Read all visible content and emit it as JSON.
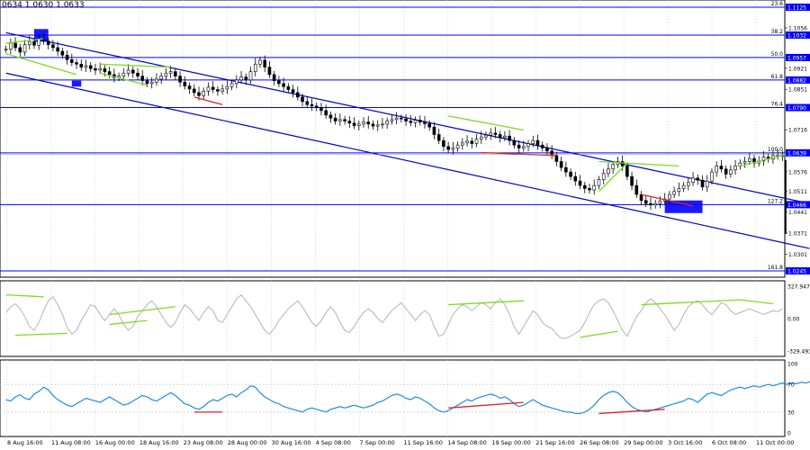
{
  "header": {
    "ohlc": "0634 1.0630 1.0633"
  },
  "colors": {
    "background": "#ffffff",
    "grid": "#c8c8c8",
    "candle": "#000000",
    "fib_line": "#0000ff",
    "channel": "#0000cc",
    "bull_divergence": "#7cdc1e",
    "bear_divergence": "#e02020",
    "osc_line": "#bfbfbf",
    "rsi_line": "#1e8ce6",
    "highlight_box": "#0000ff",
    "price_label_bg": "#0000ff"
  },
  "chart_data": [
    {
      "type": "candlestick",
      "panel": "price",
      "ylim": [
        1.025,
        1.125
      ],
      "axis_ticks": [
        "1.1056",
        "1.0921",
        "1.0851",
        "1.0716",
        "1.0576",
        "1.0511",
        "1.0441",
        "1.0371",
        "1.0301"
      ],
      "price_labels": [
        "1.1125",
        "1.1032",
        "1.0957",
        "1.0882",
        "1.0790",
        "1.0639",
        "1.0466",
        "1.0245"
      ],
      "fib_levels": [
        {
          "label": "23.6",
          "price": 1.1125
        },
        {
          "label": "38.2",
          "price": 1.1032
        },
        {
          "label": "50.0",
          "price": 1.0957
        },
        {
          "label": "61.8",
          "price": 1.0882
        },
        {
          "label": "76.4",
          "price": 1.079
        },
        {
          "label": "100.0",
          "price": 1.0639
        },
        {
          "label": "127.2",
          "price": 1.0466
        },
        {
          "label": "161.8",
          "price": 1.0245
        }
      ],
      "current_price": 1.0633,
      "closes": [
        1.0985,
        1.1005,
        1.099,
        1.0975,
        1.1,
        1.101,
        1.0998,
        1.1018,
        1.1012,
        1.1,
        1.099,
        1.0978,
        1.0965,
        1.095,
        1.094,
        1.0935,
        1.0925,
        1.093,
        1.092,
        1.0915,
        1.092,
        1.091,
        1.09,
        1.089,
        1.0895,
        1.0905,
        1.0915,
        1.0905,
        1.0895,
        1.088,
        1.087,
        1.0875,
        1.0885,
        1.0895,
        1.0905,
        1.091,
        1.0895,
        1.0875,
        1.0862,
        1.0852,
        1.084,
        1.083,
        1.0845,
        1.0858,
        1.085,
        1.0845,
        1.0852,
        1.086,
        1.087,
        1.0882,
        1.0892,
        1.0882,
        1.091,
        1.0935,
        1.0948,
        1.0925,
        1.09,
        1.088,
        1.087,
        1.086,
        1.085,
        1.084,
        1.0825,
        1.081,
        1.08,
        1.0795,
        1.079,
        1.078,
        1.0765,
        1.0755,
        1.0745,
        1.075,
        1.0745,
        1.0738,
        1.073,
        1.0735,
        1.0742,
        1.0735,
        1.0728,
        1.0732,
        1.0735,
        1.0745,
        1.075,
        1.0755,
        1.0752,
        1.0745,
        1.074,
        1.0748,
        1.0742,
        1.0736,
        1.0725,
        1.07,
        1.068,
        1.066,
        1.065,
        1.0655,
        1.0665,
        1.0672,
        1.0678,
        1.067,
        1.0685,
        1.0692,
        1.0698,
        1.0705,
        1.07,
        1.069,
        1.0695,
        1.068,
        1.0665,
        1.0655,
        1.066,
        1.067,
        1.068,
        1.0665,
        1.0655,
        1.0645,
        1.063,
        1.061,
        1.059,
        1.0575,
        1.056,
        1.0545,
        1.053,
        1.052,
        1.0515,
        1.053,
        1.055,
        1.057,
        1.0585,
        1.06,
        1.061,
        1.0595,
        1.056,
        1.053,
        1.05,
        1.048,
        1.047,
        1.0465,
        1.047,
        1.0478,
        1.0485,
        1.05,
        1.051,
        1.052,
        1.053,
        1.054,
        1.0555,
        1.0548,
        1.0525,
        1.0545,
        1.0575,
        1.0595,
        1.0585,
        1.0568,
        1.0582,
        1.0595,
        1.0605,
        1.061,
        1.062,
        1.0605,
        1.0612,
        1.0625,
        1.0618,
        1.063,
        1.0628,
        1.0633
      ],
      "channel": {
        "upper": [
          [
            1.104,
            0
          ],
          [
            1.047,
            165
          ]
        ],
        "lower": [
          [
            1.0905,
            0
          ],
          [
            1.032,
            165
          ]
        ]
      },
      "divergences": [
        {
          "color": "bull",
          "from": [
            0,
            1.1005
          ],
          "to": [
            8,
            1.102
          ]
        },
        {
          "color": "bull",
          "from": [
            0,
            1.097
          ],
          "to": [
            15,
            1.09
          ]
        },
        {
          "color": "bull",
          "from": [
            20,
            1.0935
          ],
          "to": [
            35,
            1.0925
          ]
        },
        {
          "color": "bull",
          "from": [
            20,
            1.0905
          ],
          "to": [
            30,
            1.0865
          ]
        },
        {
          "color": "bear",
          "from": [
            40,
            1.0825
          ],
          "to": [
            46,
            1.08
          ]
        },
        {
          "color": "bull",
          "from": [
            94,
            1.0762
          ],
          "to": [
            110,
            1.0715
          ]
        },
        {
          "color": "bear",
          "from": [
            101,
            1.064
          ],
          "to": [
            117,
            1.063
          ]
        },
        {
          "color": "bull",
          "from": [
            126,
            1.061
          ],
          "to": [
            143,
            1.0595
          ]
        },
        {
          "color": "bull",
          "from": [
            132,
            1.0605
          ],
          "to": [
            126,
            1.051
          ]
        },
        {
          "color": "bear",
          "from": [
            135,
            1.05
          ],
          "to": [
            146,
            1.0462
          ]
        },
        {
          "color": "bull",
          "from": [
            156,
            1.0595
          ],
          "to": [
            166,
            1.0635
          ]
        }
      ],
      "boxes": [
        {
          "from": 6,
          "to": 9,
          "low": 1.101,
          "high": 1.1052
        },
        {
          "from": 14,
          "to": 16,
          "low": 1.086,
          "high": 1.088
        },
        {
          "from": 140,
          "to": 148,
          "low": 1.0438,
          "high": 1.048
        }
      ],
      "x_labels": [
        "8 Aug 16:00",
        "11 Aug 08:00",
        "16 Aug 00:00",
        "18 Aug 16:00",
        "23 Aug 08:00",
        "28 Aug 00:00",
        "30 Aug 16:00",
        "4 Sep 08:00",
        "7 Sep 00:00",
        "11 Sep 16:00",
        "14 Sep 08:00",
        "19 Sep 00:00",
        "21 Sep 16:00",
        "26 Sep 08:00",
        "29 Sep 00:00",
        "3 Oct 16:00",
        "6 Oct 08:00",
        "11 Oct 00:00"
      ]
    },
    {
      "type": "line",
      "panel": "cci",
      "ylim": [
        -329.493,
        327.9475
      ],
      "axis_ticks": [
        "327.9475",
        "0.00",
        "-329.4930"
      ],
      "values": [
        60,
        120,
        150,
        100,
        20,
        -80,
        -120,
        -40,
        80,
        180,
        220,
        140,
        40,
        -90,
        -160,
        -120,
        -20,
        60,
        140,
        120,
        40,
        -20,
        40,
        100,
        40,
        -60,
        -120,
        -80,
        20,
        80,
        140,
        180,
        120,
        40,
        -40,
        -90,
        -40,
        60,
        140,
        100,
        40,
        -20,
        60,
        120,
        80,
        -20,
        -40,
        40,
        120,
        200,
        240,
        180,
        120,
        40,
        -40,
        -120,
        -160,
        -100,
        -20,
        40,
        100,
        140,
        180,
        120,
        40,
        -40,
        -80,
        -20,
        60,
        120,
        60,
        -40,
        -120,
        -140,
        -80,
        0,
        60,
        100,
        60,
        0,
        -40,
        20,
        80,
        120,
        160,
        100,
        40,
        -20,
        40,
        80,
        40,
        -80,
        -180,
        -160,
        -60,
        40,
        100,
        140,
        120,
        80,
        120,
        160,
        140,
        100,
        160,
        200,
        140,
        40,
        -80,
        -160,
        -80,
        0,
        80,
        40,
        -40,
        -80,
        -100,
        -160,
        -200,
        -200,
        -180,
        -150,
        -120,
        -40,
        60,
        140,
        180,
        200,
        160,
        80,
        -20,
        -120,
        -180,
        -80,
        20,
        80,
        160,
        200,
        160,
        100,
        40,
        -40,
        -120,
        -60,
        40,
        120,
        160,
        180,
        140,
        80,
        40,
        100,
        160,
        140,
        80,
        40,
        60,
        80,
        100,
        80,
        60,
        40,
        60,
        80,
        70,
        100
      ],
      "divergences": [
        {
          "color": "bull",
          "from": [
            0,
            240
          ],
          "to": [
            8,
            220
          ]
        },
        {
          "color": "bull",
          "from": [
            2,
            -170
          ],
          "to": [
            13,
            -150
          ]
        },
        {
          "color": "bull",
          "from": [
            22,
            40
          ],
          "to": [
            36,
            120
          ]
        },
        {
          "color": "bull",
          "from": [
            22,
            -60
          ],
          "to": [
            30,
            -20
          ]
        },
        {
          "color": "bull",
          "from": [
            94,
            140
          ],
          "to": [
            110,
            180
          ]
        },
        {
          "color": "bull",
          "from": [
            122,
            -190
          ],
          "to": [
            130,
            -130
          ]
        },
        {
          "color": "bull",
          "from": [
            135,
            140
          ],
          "to": [
            156,
            190
          ]
        },
        {
          "color": "bull",
          "from": [
            156,
            190
          ],
          "to": [
            163,
            150
          ]
        }
      ]
    },
    {
      "type": "line",
      "panel": "rsi",
      "ylim": [
        0,
        100
      ],
      "axis_ticks": [
        "100",
        "70",
        "30",
        "0"
      ],
      "levels": [
        70,
        30
      ],
      "values": [
        48,
        46,
        52,
        55,
        50,
        48,
        56,
        60,
        66,
        62,
        54,
        48,
        44,
        40,
        38,
        42,
        46,
        50,
        48,
        46,
        44,
        48,
        52,
        48,
        44,
        40,
        42,
        46,
        50,
        54,
        52,
        48,
        46,
        50,
        54,
        58,
        54,
        48,
        42,
        40,
        36,
        34,
        38,
        44,
        48,
        46,
        50,
        54,
        56,
        52,
        58,
        62,
        68,
        66,
        58,
        52,
        48,
        44,
        42,
        38,
        36,
        34,
        32,
        30,
        34,
        36,
        34,
        32,
        30,
        34,
        36,
        38,
        36,
        38,
        40,
        38,
        36,
        38,
        40,
        44,
        46,
        50,
        54,
        56,
        54,
        50,
        48,
        52,
        50,
        46,
        42,
        36,
        32,
        30,
        32,
        36,
        40,
        44,
        48,
        46,
        50,
        52,
        54,
        56,
        54,
        50,
        52,
        48,
        42,
        38,
        40,
        44,
        48,
        44,
        40,
        38,
        36,
        34,
        32,
        30,
        30,
        28,
        28,
        30,
        34,
        40,
        48,
        54,
        58,
        60,
        58,
        52,
        44,
        38,
        34,
        32,
        30,
        32,
        34,
        36,
        38,
        40,
        42,
        44,
        46,
        50,
        48,
        44,
        50,
        56,
        58,
        56,
        54,
        58,
        62,
        64,
        66,
        64,
        66,
        68,
        66,
        68,
        70,
        68,
        70,
        72,
        70,
        72,
        71,
        73,
        72,
        74
      ]
    }
  ]
}
